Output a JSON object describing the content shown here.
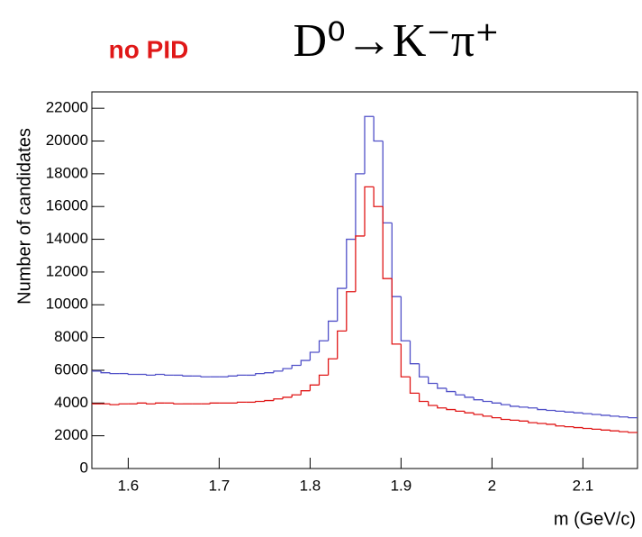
{
  "chart_data": {
    "type": "histogram",
    "title": "D⁰→K⁻π⁺",
    "subtitle": "no PID",
    "x_label": "m (GeV/c)",
    "y_label": "Number of candidates",
    "bins": [
      1.56,
      1.57,
      1.58,
      1.59,
      1.6,
      1.61,
      1.62,
      1.63,
      1.64,
      1.65,
      1.66,
      1.67,
      1.68,
      1.69,
      1.7,
      1.71,
      1.72,
      1.73,
      1.74,
      1.75,
      1.76,
      1.77,
      1.78,
      1.79,
      1.8,
      1.81,
      1.82,
      1.83,
      1.84,
      1.85,
      1.86,
      1.87,
      1.88,
      1.89,
      1.9,
      1.91,
      1.92,
      1.93,
      1.94,
      1.95,
      1.96,
      1.97,
      1.98,
      1.99,
      2,
      2.01,
      2.02,
      2.03,
      2.04,
      2.05,
      2.06,
      2.07,
      2.08,
      2.09,
      2.1,
      2.11,
      2.12,
      2.13,
      2.14,
      2.15,
      2.16
    ],
    "series": [
      {
        "color": "#5050c8",
        "values": [
          5950,
          5850,
          5800,
          5800,
          5750,
          5750,
          5700,
          5750,
          5700,
          5700,
          5650,
          5650,
          5600,
          5600,
          5600,
          5650,
          5700,
          5700,
          5800,
          5850,
          5950,
          6100,
          6300,
          6600,
          7100,
          7800,
          9000,
          11000,
          14000,
          18000,
          21500,
          20000,
          15000,
          10500,
          7800,
          6400,
          5600,
          5200,
          4900,
          4700,
          4500,
          4350,
          4200,
          4100,
          4000,
          3900,
          3800,
          3750,
          3700,
          3600,
          3550,
          3500,
          3450,
          3400,
          3350,
          3300,
          3250,
          3200,
          3150,
          3100
        ]
      },
      {
        "color": "#e01818",
        "values": [
          3950,
          3950,
          3900,
          3950,
          3950,
          4000,
          3950,
          4000,
          4000,
          3950,
          3950,
          3950,
          3950,
          4000,
          4000,
          4000,
          4050,
          4050,
          4100,
          4150,
          4250,
          4350,
          4500,
          4750,
          5100,
          5700,
          6700,
          8400,
          10800,
          14200,
          17200,
          16000,
          11600,
          7600,
          5600,
          4600,
          4100,
          3850,
          3700,
          3600,
          3500,
          3400,
          3300,
          3200,
          3100,
          3000,
          2950,
          2900,
          2800,
          2750,
          2700,
          2600,
          2550,
          2500,
          2450,
          2400,
          2350,
          2300,
          2250,
          2200
        ]
      }
    ],
    "xlim": [
      1.56,
      2.16
    ],
    "ylim": [
      0,
      23000
    ],
    "xticks": [
      1.6,
      1.7,
      1.8,
      1.9,
      2,
      2.1
    ],
    "yticks": [
      0,
      2000,
      4000,
      6000,
      8000,
      10000,
      12000,
      14000,
      16000,
      18000,
      20000,
      22000
    ]
  }
}
